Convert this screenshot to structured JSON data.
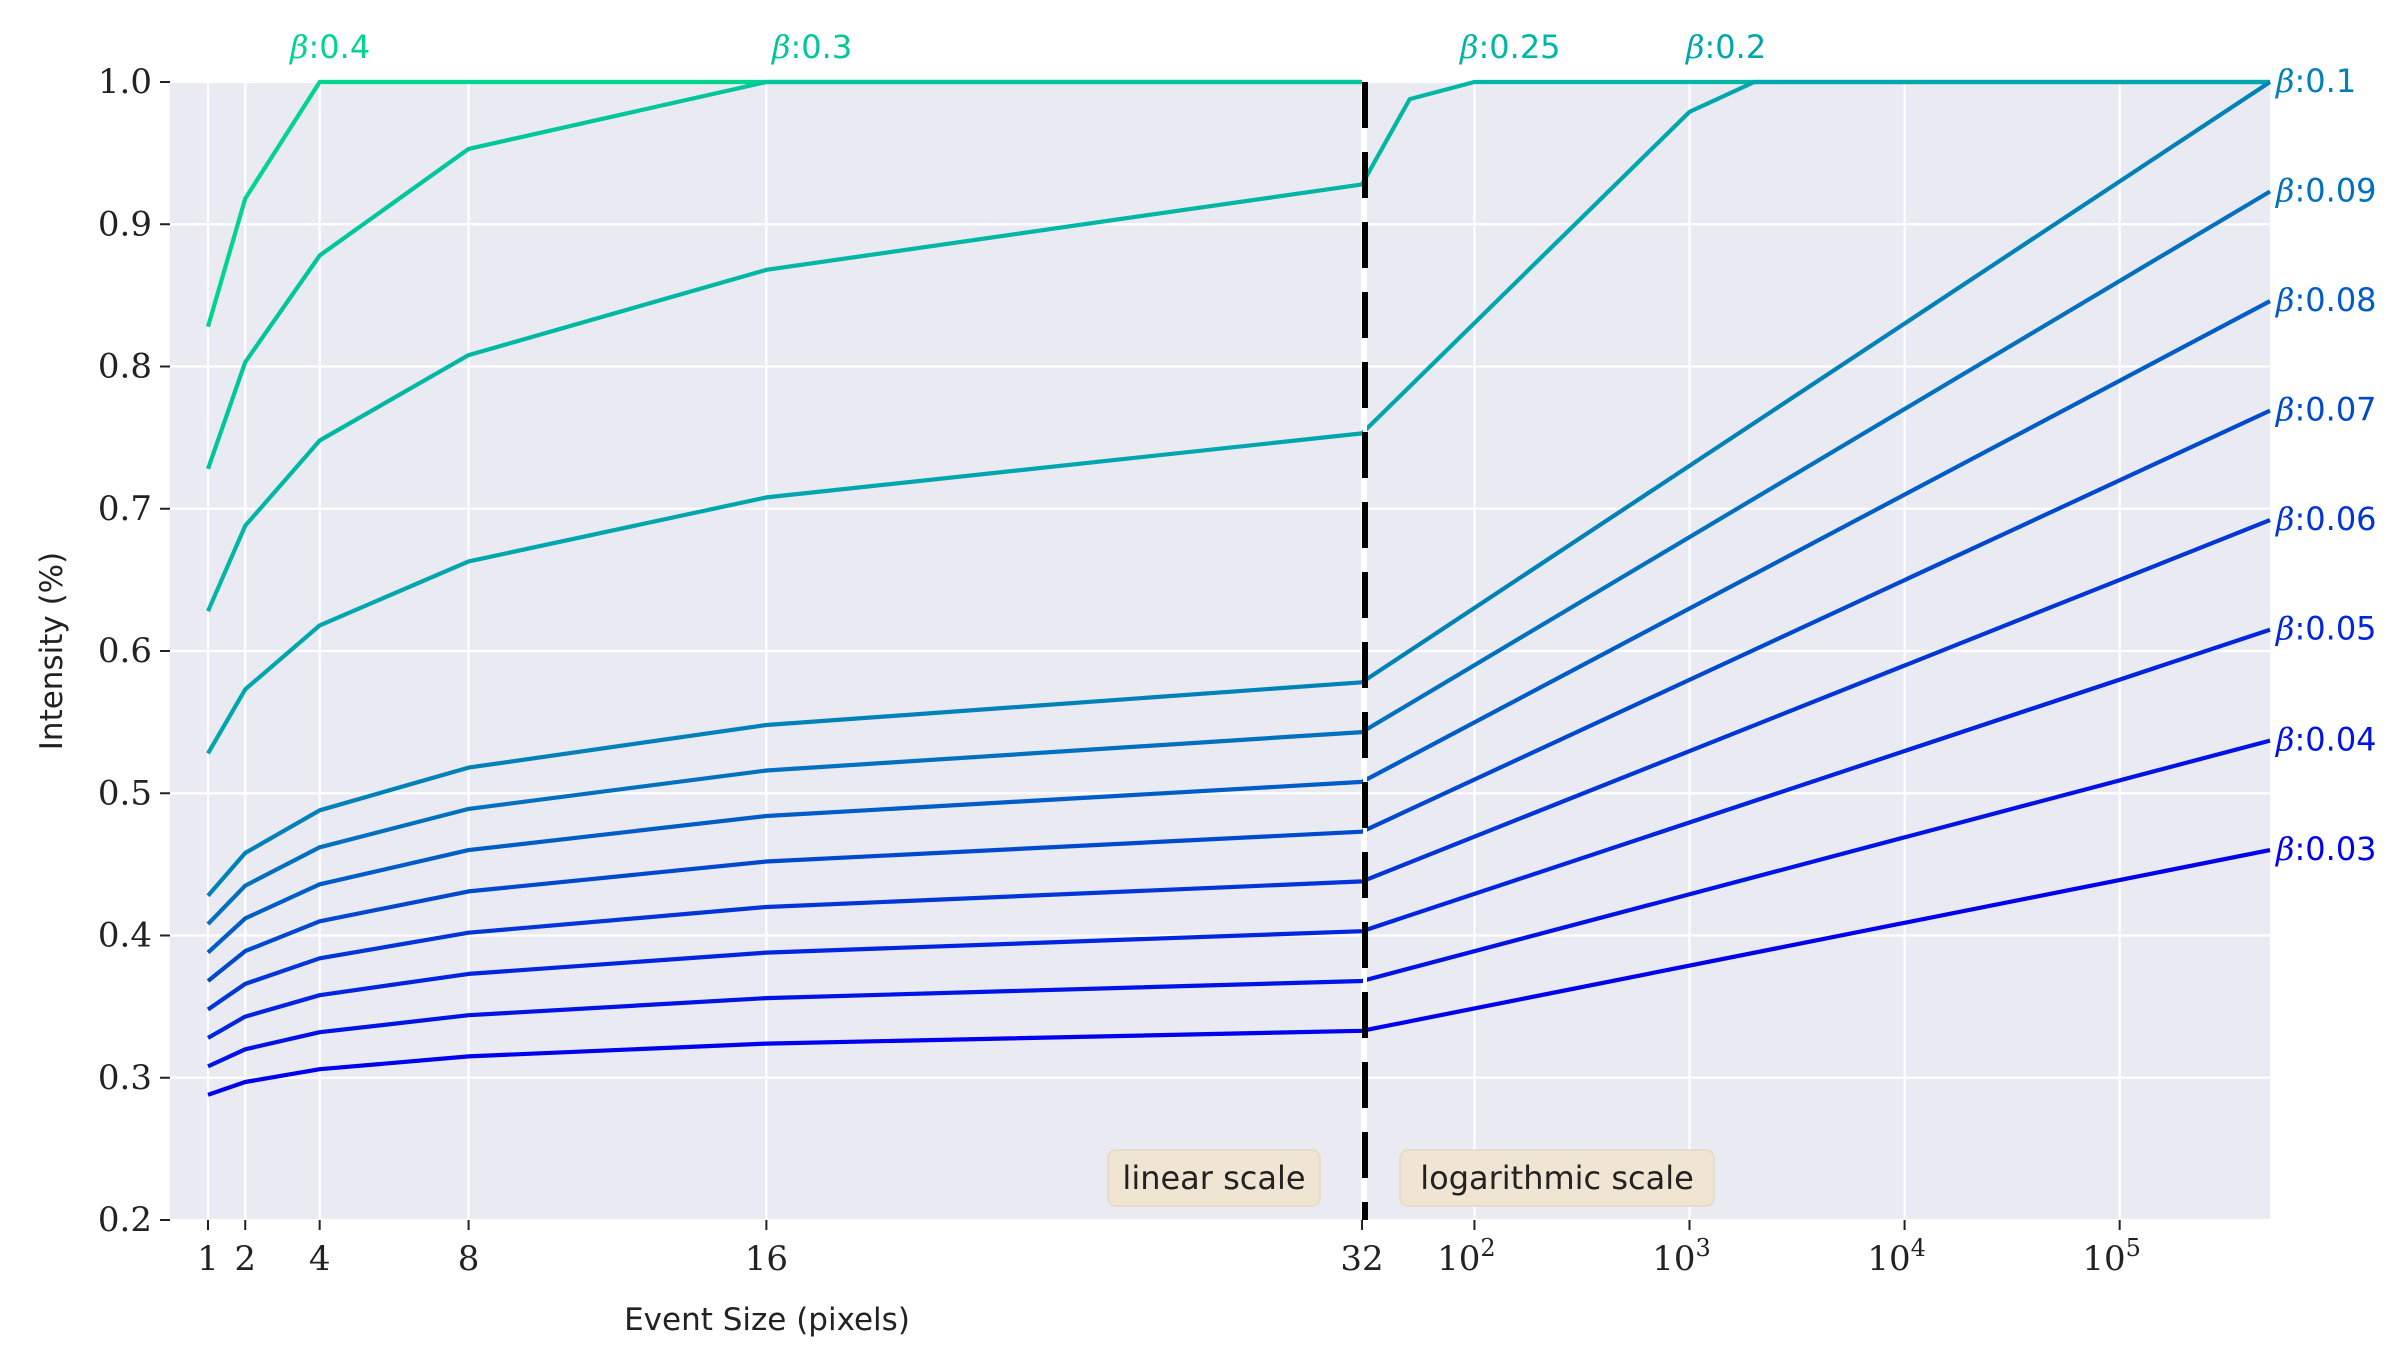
{
  "chart_data": {
    "type": "line",
    "title": "",
    "xlabel": "Event Size (pixels)",
    "ylabel": "Intensity (%)",
    "ylim": [
      0.2,
      1.0
    ],
    "y_ticks": [
      "0.2",
      "0.3",
      "0.4",
      "0.5",
      "0.6",
      "0.7",
      "0.8",
      "0.9",
      "1.0"
    ],
    "x_axis": {
      "linear_range": [
        1,
        32
      ],
      "linear_ticks": [
        "1",
        "2",
        "4",
        "8",
        "16",
        "32"
      ],
      "log_range": [
        32,
        500000
      ],
      "log_ticks": [
        {
          "base": "10",
          "exp": "2",
          "value": 100
        },
        {
          "base": "10",
          "exp": "3",
          "value": 1000
        },
        {
          "base": "10",
          "exp": "4",
          "value": 10000
        },
        {
          "base": "10",
          "exp": "5",
          "value": 100000
        }
      ]
    },
    "scale_labels": {
      "linear": "linear scale",
      "log": "logarithmic scale"
    },
    "grid": true,
    "background": "#eaeaf2",
    "series": [
      {
        "beta": "0.4",
        "color": "#00d48f",
        "x": [
          1,
          2,
          4,
          32
        ],
        "y": [
          0.828,
          0.918,
          1.0,
          1.0
        ]
      },
      {
        "beta": "0.3",
        "color": "#00c69b",
        "x": [
          1,
          2,
          4,
          8,
          16,
          32
        ],
        "y": [
          0.728,
          0.803,
          0.878,
          0.953,
          1.0,
          1.0
        ]
      },
      {
        "beta": "0.25",
        "color": "#00b7a5",
        "x": [
          1,
          2,
          4,
          8,
          16,
          32,
          50,
          100,
          500000
        ],
        "y": [
          0.628,
          0.688,
          0.748,
          0.808,
          0.868,
          0.928,
          0.988,
          1.0,
          1.0
        ]
      },
      {
        "beta": "0.2",
        "color": "#00a6ad",
        "x": [
          1,
          2,
          4,
          8,
          16,
          32,
          1000,
          2000,
          500000
        ],
        "y": [
          0.528,
          0.573,
          0.618,
          0.663,
          0.708,
          0.753,
          0.979,
          1.0,
          1.0
        ]
      },
      {
        "beta": "0.1",
        "color": "#0082b8",
        "x": [
          1,
          2,
          4,
          8,
          16,
          32,
          500000
        ],
        "y": [
          0.428,
          0.458,
          0.488,
          0.518,
          0.548,
          0.578,
          1.0
        ]
      },
      {
        "beta": "0.09",
        "color": "#0070bf",
        "x": [
          1,
          2,
          4,
          8,
          16,
          32,
          500000
        ],
        "y": [
          0.408,
          0.435,
          0.462,
          0.489,
          0.516,
          0.543,
          0.923
        ]
      },
      {
        "beta": "0.08",
        "color": "#005cc6",
        "x": [
          1,
          2,
          4,
          8,
          16,
          32,
          500000
        ],
        "y": [
          0.388,
          0.412,
          0.436,
          0.46,
          0.484,
          0.508,
          0.846
        ]
      },
      {
        "beta": "0.07",
        "color": "#0049cf",
        "x": [
          1,
          2,
          4,
          8,
          16,
          32,
          500000
        ],
        "y": [
          0.368,
          0.389,
          0.41,
          0.431,
          0.452,
          0.473,
          0.769
        ]
      },
      {
        "beta": "0.06",
        "color": "#0036d8",
        "x": [
          1,
          2,
          4,
          8,
          16,
          32,
          500000
        ],
        "y": [
          0.348,
          0.366,
          0.384,
          0.402,
          0.42,
          0.438,
          0.692
        ]
      },
      {
        "beta": "0.05",
        "color": "#0025e0",
        "x": [
          1,
          2,
          4,
          8,
          16,
          32,
          500000
        ],
        "y": [
          0.328,
          0.343,
          0.358,
          0.373,
          0.388,
          0.403,
          0.615
        ]
      },
      {
        "beta": "0.04",
        "color": "#0013e7",
        "x": [
          1,
          2,
          4,
          8,
          16,
          32,
          500000
        ],
        "y": [
          0.308,
          0.32,
          0.332,
          0.344,
          0.356,
          0.368,
          0.537
        ]
      },
      {
        "beta": "0.03",
        "color": "#0000ee",
        "x": [
          1,
          2,
          4,
          8,
          16,
          32,
          500000
        ],
        "y": [
          0.288,
          0.297,
          0.306,
          0.315,
          0.324,
          0.333,
          0.46
        ]
      }
    ]
  }
}
